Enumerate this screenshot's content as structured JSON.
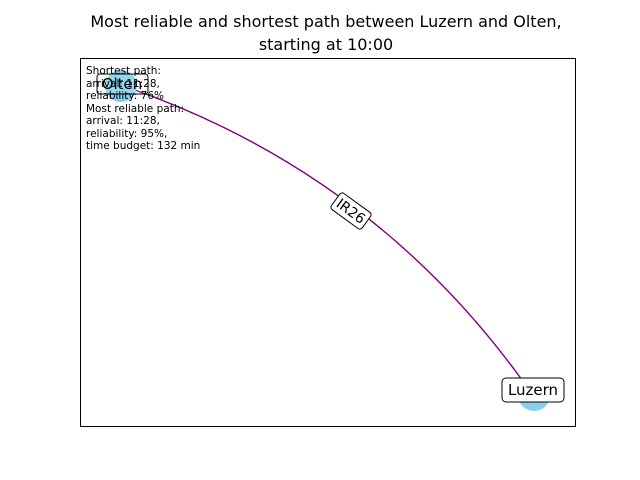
{
  "title_line1": "Most reliable and shortest path between Luzern and Olten,",
  "title_line2": "starting at 10:00",
  "info": {
    "shortest_heading": "Shortest path:",
    "shortest_arrival": "arrival: 11:28,",
    "shortest_reliability": "reliability: 76%",
    "reliable_heading": "Most reliable path:",
    "reliable_arrival": "arrival: 11:28,",
    "reliable_reliability": "reliability: 95%,",
    "reliable_budget": "time budget: 132 min"
  },
  "graph": {
    "nodes": [
      {
        "id": "olten",
        "label": "Olten"
      },
      {
        "id": "luzern",
        "label": "Luzern"
      }
    ],
    "edges": [
      {
        "from": "luzern",
        "to": "olten",
        "label": "IR26"
      }
    ]
  },
  "colors": {
    "node_fill": "#87ceeb",
    "edge": "#800080",
    "label_box_border": "#000000",
    "label_box_fill": "#ffffff"
  }
}
